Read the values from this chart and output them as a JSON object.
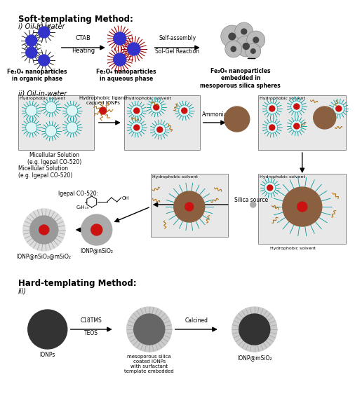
{
  "title_soft": "Soft-templating Method:",
  "title_hard": "Hard-templating Method:",
  "label_i": "i) Oil-in-water",
  "label_ii": "ii) Oil-in-water",
  "label_iii": "iii)",
  "arrow_ctab": "CTAB\nHeating",
  "arrow_self": "Self-assembly\nSol-Gel Reaction",
  "label_fe3o4_organic": "Fe₃O₄ nanoparticles\nin organic phase",
  "label_fe3o4_aqueous": "Fe₃O₄ nanoparticles\nin aqueous phase",
  "label_fe3o4_embedded": "Fe₃O₄ nanoparticles\nembedded in\nmesoporous silica spheres",
  "label_hydrophobic": "Hydrophobic solvent",
  "label_micelle": "Micellular Solution\n(e.g. Igepal CO-520)",
  "label_hyd_ligand": "Hydrophobic ligand\ncapped IONPs",
  "label_ammonia": "Ammonia",
  "label_silica_source": "Silica source",
  "label_igepal": "Igepal CO-520:",
  "label_c9h19": "C₉H₁₉",
  "label_ionp_msio2": "IONP@nSiO₂@mSiO₂",
  "label_ionp_nsio2": "IONP@nSiO₂",
  "label_ionps": "IONPs",
  "label_ionp_msio2_hard": "IONP@mSiO₂",
  "label_c18tms": "C18TMS",
  "label_teos": "TEOS",
  "label_calcined": "Calcined",
  "label_meso_coated": "mesoporous silica\ncoated IONPs\nwith surfactant\ntemplate embedded",
  "bg_color": "#ffffff",
  "text_color": "#000000",
  "blue_core": "#3333cc",
  "red_core": "#cc1111",
  "brown_core": "#8B6040",
  "cyan_spikes": "#009999",
  "dark_gray": "#555555",
  "light_gray": "#cccccc",
  "med_gray": "#999999",
  "box_fill": "#e8e8e8",
  "box_edge": "#888888"
}
